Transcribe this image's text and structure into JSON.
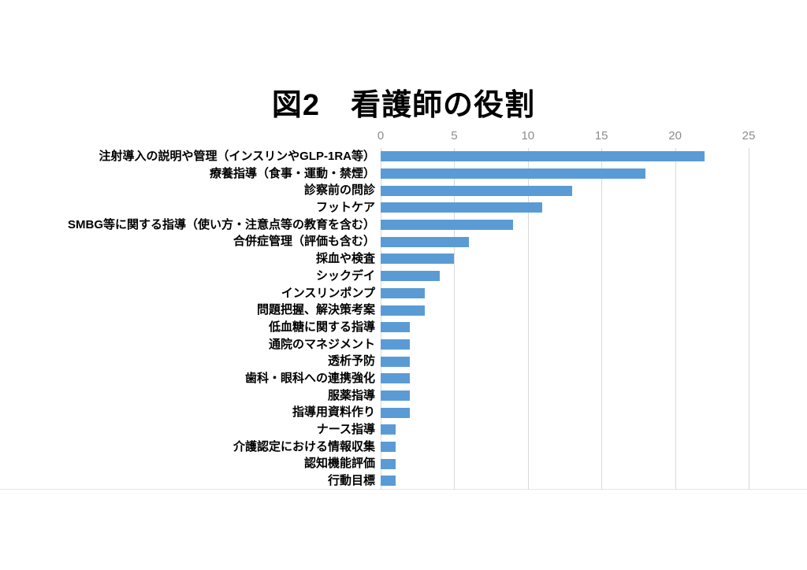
{
  "chart_data": {
    "type": "bar",
    "orientation": "horizontal",
    "title": "図2　看護師の役割",
    "categories": [
      "注射導入の説明や管理（インスリンやGLP-1RA等）",
      "療養指導（食事・運動・禁煙）",
      "診察前の問診",
      "フットケア",
      "SMBG等に関する指導（使い方・注意点等の教育を含む）",
      "合併症管理（評価も含む）",
      "採血や検査",
      "シックデイ",
      "インスリンポンプ",
      "問題把握、解決策考案",
      "低血糖に関する指導",
      "通院のマネジメント",
      "透析予防",
      "歯科・眼科への連携強化",
      "服薬指導",
      "指導用資料作り",
      "ナース指導",
      "介護認定における情報収集",
      "認知機能評価",
      "行動目標"
    ],
    "values": [
      22,
      18,
      13,
      11,
      9,
      6,
      5,
      4,
      3,
      3,
      2,
      2,
      2,
      2,
      2,
      2,
      1,
      1,
      1,
      1
    ],
    "xlim": [
      0,
      25
    ],
    "xticks": [
      0,
      5,
      10,
      15,
      20,
      25
    ],
    "xlabel": "",
    "ylabel": "",
    "legend": false,
    "grid": true,
    "colors": {
      "bar": "#5B9BD5",
      "gridline": "#D9D9D9",
      "tick_label": "#8C8C8C",
      "title": "#000000",
      "category_label": "#000000",
      "background": "#FFFFFF"
    }
  }
}
